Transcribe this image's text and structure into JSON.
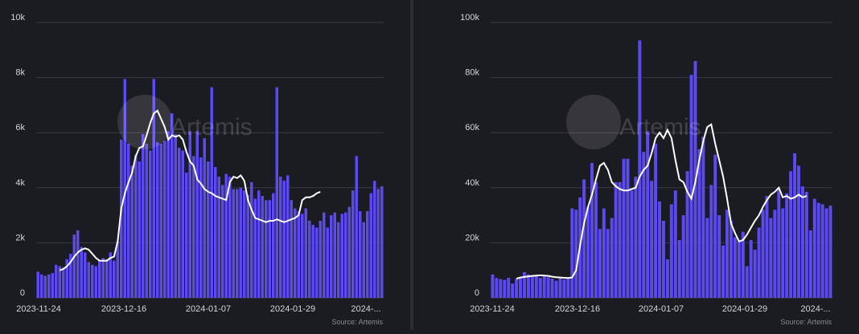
{
  "watermark": "Artemis",
  "colors": {
    "background": "#1b1b22",
    "bars": "#5a4af0",
    "line": "#ffffff",
    "grid": "#3a3a44",
    "text": "#d4d4dc",
    "source": "#8a8a96"
  },
  "chart_data": [
    {
      "type": "bar",
      "overlay_series": "moving-average line",
      "ylim": [
        0,
        10000
      ],
      "y_ticks": [
        "0",
        "2k",
        "4k",
        "6k",
        "8k",
        "10k"
      ],
      "x_ticks": [
        "2023-11-24",
        "2023-12-16",
        "2024-01-07",
        "2024-01-29",
        "2024-..."
      ],
      "source": "Source: Artemis",
      "grid": true,
      "values": [
        950,
        850,
        800,
        850,
        900,
        1200,
        1150,
        1100,
        1400,
        1600,
        2300,
        2450,
        1850,
        1650,
        1300,
        1200,
        1150,
        1350,
        1450,
        1400,
        1650,
        1350,
        2050,
        5750,
        7950,
        5600,
        4800,
        5200,
        4950,
        5950,
        5600,
        5350,
        7950,
        5650,
        5600,
        5700,
        6050,
        6700,
        5950,
        5450,
        5350,
        4550,
        6050,
        5150,
        6050,
        5100,
        5800,
        4950,
        7650,
        4750,
        4400,
        4100,
        4500,
        4400,
        3950,
        3950,
        4000,
        3900,
        3750,
        4200,
        3600,
        3900,
        3700,
        3550,
        3550,
        3800,
        7650,
        4400,
        4250,
        4450,
        3550,
        3250,
        3150,
        3050,
        3250,
        2800,
        2650,
        2550,
        2800,
        3100,
        2550,
        3000,
        3100,
        2750,
        3050,
        3100,
        3300,
        3900,
        5150,
        3150,
        2750,
        3150,
        3800,
        4250,
        3950,
        4050
      ],
      "ma_start_index": 6,
      "ma": [
        1000,
        1050,
        1150,
        1300,
        1500,
        1650,
        1750,
        1800,
        1750,
        1600,
        1450,
        1350,
        1350,
        1350,
        1450,
        1500,
        2050,
        3250,
        3800,
        4200,
        4550,
        5150,
        5450,
        5500,
        5900,
        6350,
        6700,
        6800,
        6500,
        6200,
        5750,
        5900,
        5850,
        5900,
        5750,
        5300,
        4950,
        4800,
        4300,
        4150,
        3950,
        3850,
        3800,
        3700,
        3650,
        3600,
        3550,
        4200,
        4400,
        4350,
        4450,
        4250,
        3550,
        3200,
        2900,
        2850,
        2800,
        2750,
        2800,
        2800,
        2850,
        2800,
        2750,
        2800,
        2850,
        2900,
        3000,
        3550,
        3650,
        3650,
        3700,
        3800,
        3850
      ]
    },
    {
      "type": "bar",
      "overlay_series": "moving-average line",
      "ylim": [
        0,
        100000
      ],
      "y_ticks": [
        "0",
        "20k",
        "40k",
        "60k",
        "80k",
        "100k"
      ],
      "x_ticks": [
        "2023-11-24",
        "2023-12-16",
        "2024-01-07",
        "2024-01-29",
        "2024-..."
      ],
      "source": "Source: Artemis",
      "grid": true,
      "values": [
        8500,
        7200,
        6800,
        6500,
        7300,
        5200,
        6900,
        7100,
        9400,
        8500,
        7800,
        8200,
        7200,
        7800,
        7500,
        7000,
        6200,
        7300,
        6700,
        7200,
        32500,
        32000,
        36500,
        43000,
        33000,
        49000,
        42000,
        25000,
        32500,
        25000,
        29000,
        42000,
        42000,
        50500,
        50500,
        39000,
        44000,
        93500,
        53000,
        60500,
        42500,
        56000,
        35000,
        28000,
        14000,
        34000,
        39000,
        21000,
        30000,
        46000,
        81000,
        86000,
        54000,
        58500,
        29000,
        41000,
        52000,
        30000,
        19000,
        32000,
        28000,
        22000,
        21000,
        24000,
        11500,
        21000,
        17500,
        25500,
        32000,
        37000,
        29000,
        32000,
        39500,
        32500,
        38000,
        46000,
        52500,
        48000,
        40500,
        38500,
        24500,
        36000,
        34500,
        34000,
        32500,
        33500
      ],
      "ma_start_index": 6,
      "ma": [
        7000,
        7400,
        7600,
        7800,
        8000,
        8100,
        8200,
        8100,
        8000,
        7700,
        7500,
        7400,
        7300,
        7200,
        7400,
        10000,
        19000,
        27000,
        33000,
        37500,
        43000,
        48000,
        49000,
        46500,
        42000,
        40500,
        39500,
        39000,
        39000,
        39500,
        40000,
        44000,
        46500,
        48000,
        52500,
        58000,
        60000,
        58000,
        61000,
        58000,
        50000,
        43000,
        42000,
        38500,
        36000,
        42000,
        50000,
        57000,
        62000,
        63000,
        56000,
        50000,
        44000,
        36000,
        27000,
        23500,
        20500,
        21000,
        23000,
        25500,
        28000,
        30000,
        33000,
        35500,
        37500,
        38500,
        40000,
        36500,
        37000,
        36000,
        36500,
        37500,
        36500,
        37000
      ]
    }
  ]
}
